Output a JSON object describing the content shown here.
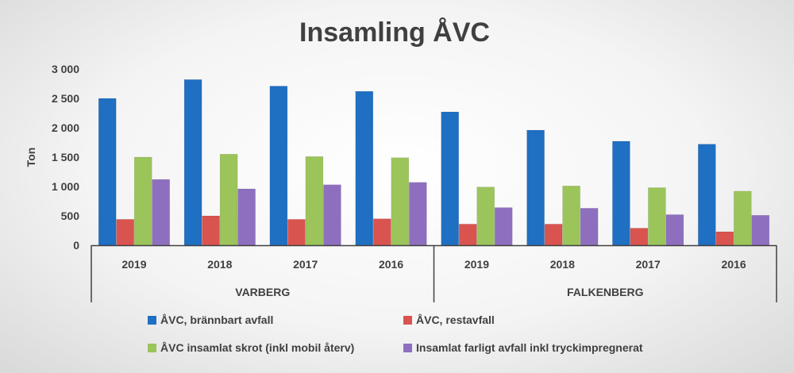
{
  "chart_data": {
    "type": "bar",
    "title": "Insamling ÅVC",
    "ylabel": "Ton",
    "xlabel": "",
    "ylim": [
      0,
      3000
    ],
    "yticks": [
      "3 000",
      "2 500",
      "2 000",
      "1 500",
      "1 000",
      "500",
      "0"
    ],
    "ytick_values": [
      3000,
      2500,
      2000,
      1500,
      1000,
      500,
      0
    ],
    "grid": false,
    "legend_position": "bottom",
    "groups": [
      {
        "label": "VARBERG",
        "categories": [
          "2019",
          "2018",
          "2017",
          "2016"
        ]
      },
      {
        "label": "FALKENBERG",
        "categories": [
          "2019",
          "2018",
          "2017",
          "2016"
        ]
      }
    ],
    "categories": [
      "2019",
      "2018",
      "2017",
      "2016",
      "2019",
      "2018",
      "2017",
      "2016"
    ],
    "series": [
      {
        "name": "ÅVC, brännbart avfall",
        "color": "#1f6fc2",
        "values": [
          2500,
          2820,
          2710,
          2620,
          2270,
          1960,
          1770,
          1720
        ]
      },
      {
        "name": "ÅVC, restavfall",
        "color": "#d9534f",
        "values": [
          440,
          500,
          440,
          450,
          360,
          360,
          290,
          230
        ]
      },
      {
        "name": "ÅVC insamlat skrot (inkl mobil återv)",
        "color": "#9bc45a",
        "values": [
          1500,
          1550,
          1510,
          1490,
          990,
          1010,
          980,
          920
        ]
      },
      {
        "name": "Insamlat farligt avfall inkl tryckimpregnerat",
        "color": "#8e6fbf",
        "values": [
          1120,
          960,
          1030,
          1070,
          640,
          630,
          520,
          510
        ]
      }
    ]
  }
}
